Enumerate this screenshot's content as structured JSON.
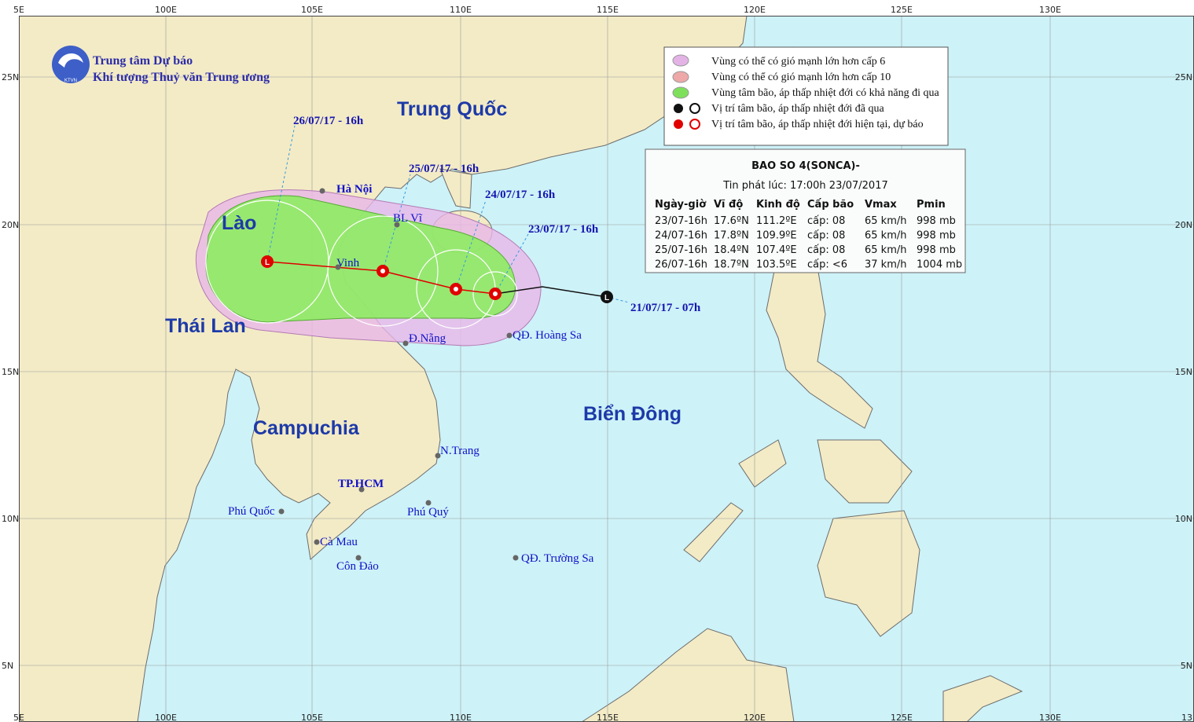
{
  "header": {
    "org_line1": "Trung tâm Dự báo",
    "org_line2": "Khí tượng Thuỷ văn Trung ương",
    "logo": "KTVN"
  },
  "axes": {
    "top": [
      "5E",
      "100E",
      "105E",
      "110E",
      "115E",
      "120E",
      "125E",
      "130E"
    ],
    "bottom": [
      "5E",
      "100E",
      "105E",
      "110E",
      "115E",
      "120E",
      "125E",
      "130E",
      "13"
    ],
    "left": [
      "25N",
      "20N",
      "15N",
      "10N",
      "5N"
    ],
    "right": [
      "25N",
      "20N",
      "15N",
      "10N",
      "5N"
    ]
  },
  "countries": [
    "Trung Quốc",
    "Lào",
    "Thái Lan",
    "Campuchia",
    "Biển Đông"
  ],
  "places": [
    "Hà Nội",
    "BL Vĩ",
    "Vinh",
    "Đ.Nẵng",
    "QĐ. Hoàng Sa",
    "N.Trang",
    "TP.HCM",
    "Phú Quốc",
    "Phú Quý",
    "Cà Mau",
    "Côn Đảo",
    "QĐ. Trường Sa"
  ],
  "track_labels": [
    "26/07/17 - 16h",
    "25/07/17 - 16h",
    "24/07/17 - 16h",
    "23/07/17 - 16h",
    "21/07/17 - 07h"
  ],
  "legend": [
    "Vùng có thể có gió mạnh lớn hơn cấp 6",
    "Vùng có thể có gió mạnh lớn hơn cấp 10",
    "Vùng tâm bão, áp thấp nhiệt đới có khả năng đi qua",
    "Vị trí tâm bão, áp thấp nhiệt đới đã qua",
    "Vị trí tâm bão, áp thấp nhiệt đới hiện tại, dự báo"
  ],
  "info": {
    "title": "BAO SO 4(SONCA)-",
    "issued": "Tin phát lúc: 17:00h 23/07/2017",
    "columns": [
      "Ngày-giờ",
      "Vĩ độ",
      "Kinh độ",
      "Cấp bão",
      "Vmax",
      "Pmin"
    ],
    "rows": [
      [
        "23/07-16h",
        "17.6ºN",
        "111.2ºE",
        "cấp: 08",
        "65 km/h",
        "998 mb"
      ],
      [
        "24/07-16h",
        "17.8ºN",
        "109.9ºE",
        "cấp: 08",
        "65 km/h",
        "998 mb"
      ],
      [
        "25/07-16h",
        "18.4ºN",
        "107.4ºE",
        "cấp: 08",
        "65 km/h",
        "998 mb"
      ],
      [
        "26/07-16h",
        "18.7ºN",
        "103.5ºE",
        "cấp: <6",
        "37 km/h",
        "1004 mb"
      ]
    ]
  }
}
